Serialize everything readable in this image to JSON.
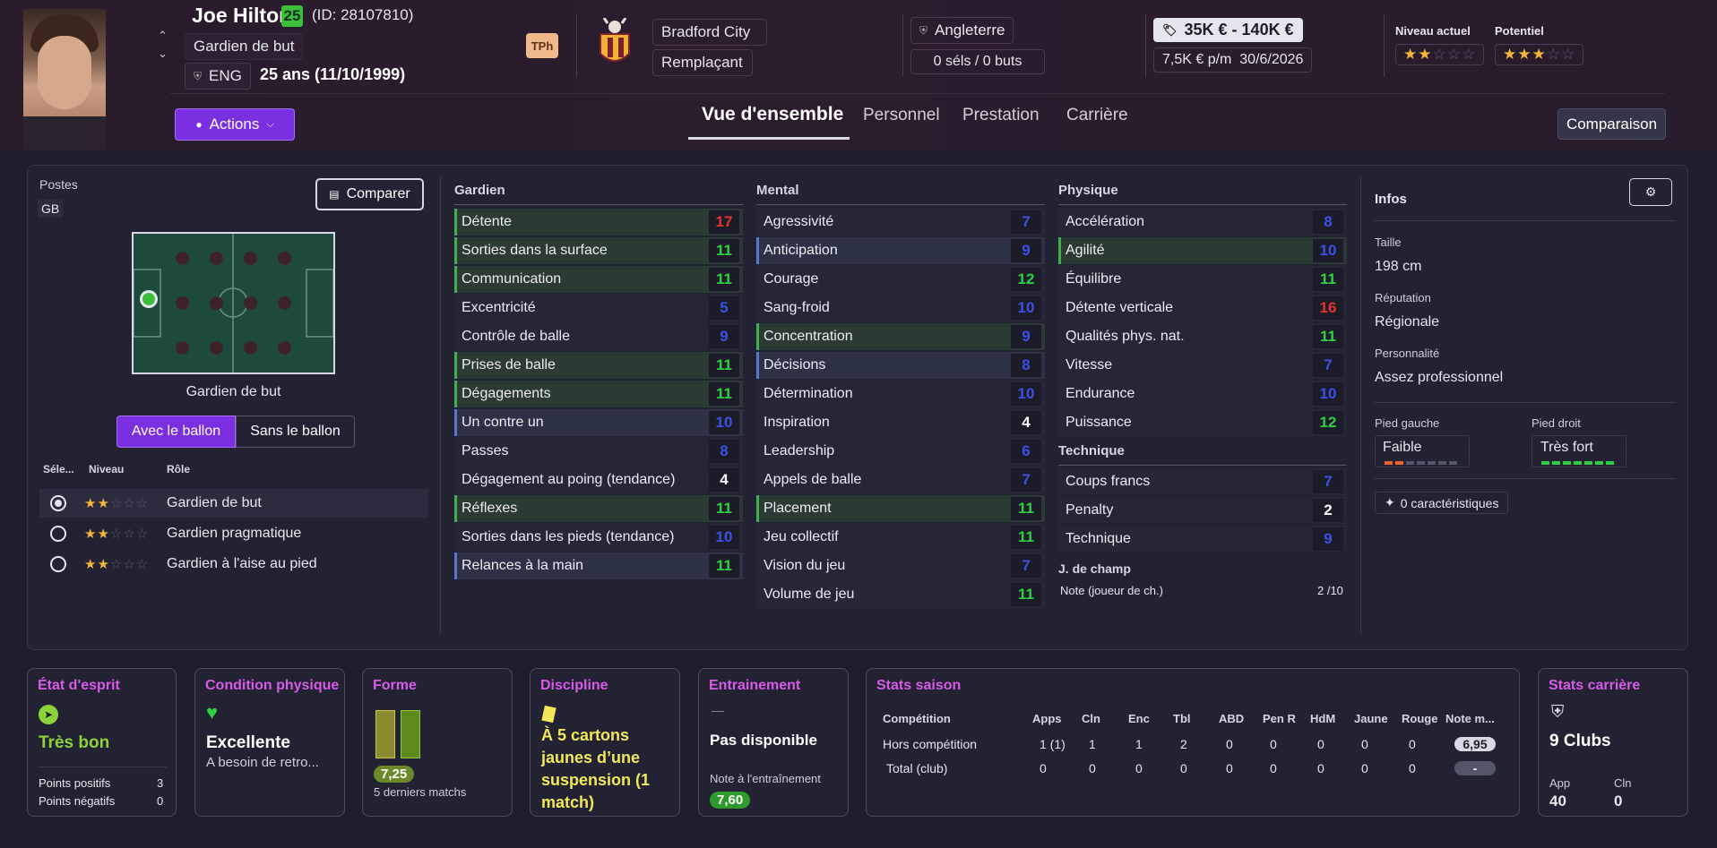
{
  "header": {
    "name": "Joe Hilton",
    "age_badge": "25",
    "id": "(ID: 28107810)",
    "position": "Gardien de but",
    "nationality": "ENG",
    "age": "25 ans (11/10/1999)",
    "tph": "TPh",
    "club": "Bradford City",
    "squad_status": "Remplaçant",
    "country": "Angleterre",
    "caps": "0 séls / 0 buts",
    "value": "35K € - 140K €",
    "wage": "7,5K € p/m",
    "contract_end": "30/6/2026",
    "current_level_label": "Niveau actuel",
    "potential_label": "Potentiel",
    "current_stars": 2,
    "potential_stars": 3,
    "max_stars": 5,
    "actions_label": "Actions",
    "compare_btn": "Comparaison"
  },
  "tabs": [
    "Vue d'ensemble",
    "Personnel",
    "Prestation",
    "Carrière"
  ],
  "positions": {
    "label": "Postes",
    "code": "GB",
    "compare_btn": "Comparer",
    "position_name": "Gardien de but",
    "toggle_with": "Avec le ballon",
    "toggle_without": "Sans le ballon",
    "col_select": "Séle...",
    "col_level": "Niveau",
    "col_role": "Rôle",
    "roles": [
      {
        "name": "Gardien de but",
        "stars": 2,
        "selected": true
      },
      {
        "name": "Gardien pragmatique",
        "stars": 2,
        "selected": false
      },
      {
        "name": "Gardien à l'aise au pied",
        "stars": 2,
        "selected": false
      }
    ]
  },
  "attributes": {
    "gardien": {
      "title": "Gardien",
      "rows": [
        {
          "name": "Détente",
          "value": "17",
          "color": "red",
          "hl": "g"
        },
        {
          "name": "Sorties dans la surface",
          "value": "11",
          "color": "green",
          "hl": "g"
        },
        {
          "name": "Communication",
          "value": "11",
          "color": "green",
          "hl": "g"
        },
        {
          "name": "Excentricité",
          "value": "5",
          "color": "blue",
          "hl": "p"
        },
        {
          "name": "Contrôle de balle",
          "value": "9",
          "color": "blue",
          "hl": "p"
        },
        {
          "name": "Prises de balle",
          "value": "11",
          "color": "green",
          "hl": "g"
        },
        {
          "name": "Dégagements",
          "value": "11",
          "color": "green",
          "hl": "g"
        },
        {
          "name": "Un contre un",
          "value": "10",
          "color": "blue",
          "hl": "b"
        },
        {
          "name": "Passes",
          "value": "8",
          "color": "blue",
          "hl": "p"
        },
        {
          "name": "Dégagement au poing (tendance)",
          "value": "4",
          "color": "white",
          "hl": "p"
        },
        {
          "name": "Réflexes",
          "value": "11",
          "color": "green",
          "hl": "g"
        },
        {
          "name": "Sorties dans les pieds (tendance)",
          "value": "10",
          "color": "blue",
          "hl": "p"
        },
        {
          "name": "Relances à la main",
          "value": "11",
          "color": "green",
          "hl": "b"
        }
      ]
    },
    "mental": {
      "title": "Mental",
      "rows": [
        {
          "name": "Agressivité",
          "value": "7",
          "color": "blue",
          "hl": "p"
        },
        {
          "name": "Anticipation",
          "value": "9",
          "color": "blue",
          "hl": "b"
        },
        {
          "name": "Courage",
          "value": "12",
          "color": "green",
          "hl": "p"
        },
        {
          "name": "Sang-froid",
          "value": "10",
          "color": "blue",
          "hl": "p"
        },
        {
          "name": "Concentration",
          "value": "9",
          "color": "blue",
          "hl": "g"
        },
        {
          "name": "Décisions",
          "value": "8",
          "color": "blue",
          "hl": "b"
        },
        {
          "name": "Détermination",
          "value": "10",
          "color": "blue",
          "hl": "p"
        },
        {
          "name": "Inspiration",
          "value": "4",
          "color": "white",
          "hl": "p"
        },
        {
          "name": "Leadership",
          "value": "6",
          "color": "blue",
          "hl": "p"
        },
        {
          "name": "Appels de balle",
          "value": "7",
          "color": "blue",
          "hl": "p"
        },
        {
          "name": "Placement",
          "value": "11",
          "color": "green",
          "hl": "g"
        },
        {
          "name": "Jeu collectif",
          "value": "11",
          "color": "green",
          "hl": "p"
        },
        {
          "name": "Vision du jeu",
          "value": "7",
          "color": "blue",
          "hl": "p"
        },
        {
          "name": "Volume de jeu",
          "value": "11",
          "color": "green",
          "hl": "p"
        }
      ]
    },
    "physique": {
      "title": "Physique",
      "rows": [
        {
          "name": "Accélération",
          "value": "8",
          "color": "blue",
          "hl": "p"
        },
        {
          "name": "Agilité",
          "value": "10",
          "color": "blue",
          "hl": "g"
        },
        {
          "name": "Équilibre",
          "value": "11",
          "color": "green",
          "hl": "p"
        },
        {
          "name": "Détente verticale",
          "value": "16",
          "color": "red",
          "hl": "p"
        },
        {
          "name": "Qualités phys. nat.",
          "value": "11",
          "color": "green",
          "hl": "p"
        },
        {
          "name": "Vitesse",
          "value": "7",
          "color": "blue",
          "hl": "p"
        },
        {
          "name": "Endurance",
          "value": "10",
          "color": "blue",
          "hl": "p"
        },
        {
          "name": "Puissance",
          "value": "12",
          "color": "green",
          "hl": "p"
        }
      ]
    },
    "technique": {
      "title": "Technique",
      "rows": [
        {
          "name": "Coups francs",
          "value": "7",
          "color": "blue",
          "hl": "p"
        },
        {
          "name": "Penalty",
          "value": "2",
          "color": "white",
          "hl": "p"
        },
        {
          "name": "Technique",
          "value": "9",
          "color": "blue",
          "hl": "p"
        }
      ]
    },
    "outfield": {
      "title": "J. de champ",
      "note_label": "Note (joueur de ch.)",
      "note_value": "2 /10"
    }
  },
  "infos": {
    "title": "Infos",
    "height_label": "Taille",
    "height": "198 cm",
    "reputation_label": "Réputation",
    "reputation": "Régionale",
    "personality_label": "Personnalité",
    "personality": "Assez professionnel",
    "left_foot_label": "Pied gauche",
    "left_foot": "Faible",
    "right_foot_label": "Pied droit",
    "right_foot": "Très fort",
    "traits": "0 caractéristiques"
  },
  "cards": {
    "morale": {
      "title": "État d'esprit",
      "value": "Très bon",
      "pos_label": "Points positifs",
      "pos": "3",
      "neg_label": "Points négatifs",
      "neg": "0"
    },
    "condition": {
      "title": "Condition physique",
      "value": "Excellente",
      "sub": "A besoin de retro..."
    },
    "form": {
      "title": "Forme",
      "rating": "7,25",
      "sub": "5 derniers matchs"
    },
    "discipline": {
      "title": "Discipline",
      "text": "À 5 cartons jaunes d’une suspension (1 match)"
    },
    "training": {
      "title": "Entrainement",
      "dash": "—",
      "value": "Pas disponible",
      "note_label": "Note à l'entraînement",
      "note": "7,60"
    },
    "season": {
      "title": "Stats saison",
      "headers": [
        "Compétition",
        "Apps",
        "Cln",
        "Enc",
        "Tbl",
        "ABD",
        "Pen R",
        "HdM",
        "Jaune",
        "Rouge",
        "Note m..."
      ],
      "rows": [
        [
          "Hors compétition",
          "1 (1)",
          "1",
          "1",
          "2",
          "0",
          "0",
          "0",
          "0",
          "0",
          "6,95"
        ],
        [
          "Total (club)",
          "0",
          "0",
          "0",
          "0",
          "0",
          "0",
          "0",
          "0",
          "0",
          "-"
        ]
      ]
    },
    "career": {
      "title": "Stats carrière",
      "clubs": "9 Clubs",
      "app_label": "App",
      "app": "40",
      "cln_label": "Cln",
      "cln": "0"
    }
  },
  "colors": {
    "accent": "#7a2fe0",
    "green": "#2fcf45",
    "red": "#e5342b",
    "blue": "#3a50e8",
    "title_pink": "#d65be8"
  }
}
